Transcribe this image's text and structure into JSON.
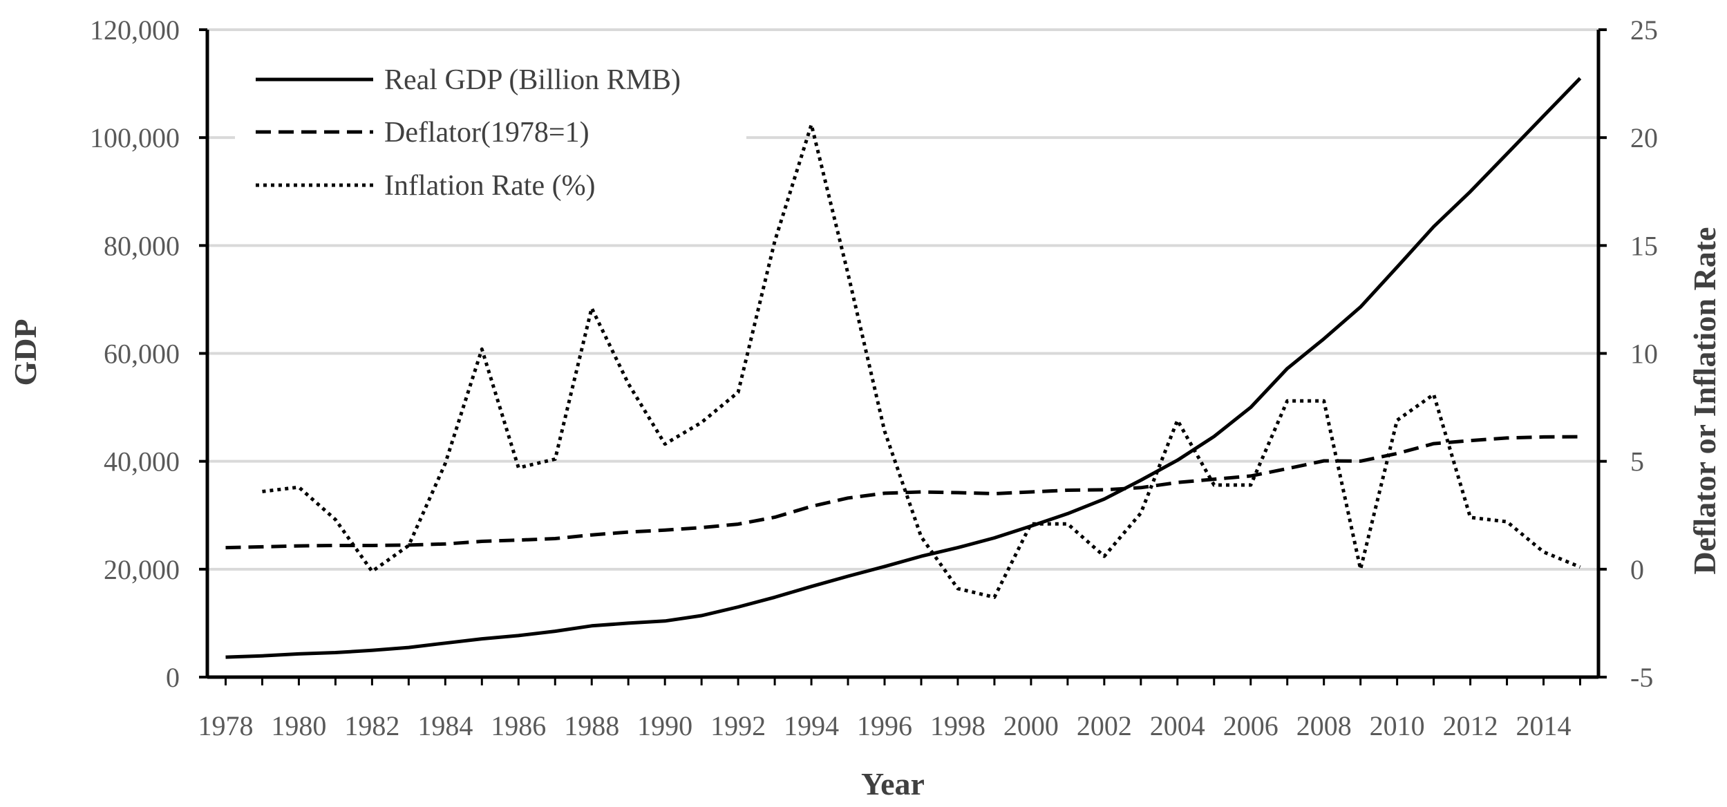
{
  "chart_data": {
    "type": "line",
    "title": "",
    "xlabel": "Year",
    "ylabel": "GDP",
    "y2label": "Deflator or Inflation Rate",
    "xlim": [
      1977.5,
      2015.5
    ],
    "ylim": [
      0,
      120000
    ],
    "y2lim": [
      -5,
      25
    ],
    "x_ticks": [
      1978,
      1980,
      1982,
      1984,
      1986,
      1988,
      1990,
      1992,
      1994,
      1996,
      1998,
      2000,
      2002,
      2004,
      2006,
      2008,
      2010,
      2012,
      2014
    ],
    "x_tick_labels": [
      "1978",
      "1980",
      "1982",
      "1984",
      "1986",
      "1988",
      "1990",
      "1992",
      "1994",
      "1996",
      "1998",
      "2000",
      "2002",
      "2004",
      "2006",
      "2008",
      "2010",
      "2012",
      "2014"
    ],
    "y_ticks": [
      0,
      20000,
      40000,
      60000,
      80000,
      100000,
      120000
    ],
    "y_tick_labels": [
      "0",
      "20,000",
      "40,000",
      "60,000",
      "80,000",
      "100,000",
      "120,000"
    ],
    "y2_ticks": [
      -5,
      0,
      5,
      10,
      15,
      20,
      25
    ],
    "y2_tick_labels": [
      "-5",
      "0",
      "5",
      "10",
      "15",
      "20",
      "25"
    ],
    "grid": "horizontal",
    "legend_position": "top-left",
    "series": [
      {
        "name": "Real GDP (Billion RMB)",
        "axis": "left",
        "style": "solid",
        "x": [
          1978,
          1979,
          1980,
          1981,
          1982,
          1983,
          1984,
          1985,
          1986,
          1987,
          1988,
          1989,
          1990,
          1991,
          1992,
          1993,
          1994,
          1995,
          1996,
          1997,
          1998,
          1999,
          2000,
          2001,
          2002,
          2003,
          2004,
          2005,
          2006,
          2007,
          2008,
          2009,
          2010,
          2011,
          2012,
          2013,
          2014,
          2015
        ],
        "values": [
          3700,
          3950,
          4300,
          4550,
          4950,
          5500,
          6300,
          7100,
          7700,
          8500,
          9500,
          10000,
          10400,
          11400,
          13000,
          14800,
          16800,
          18700,
          20500,
          22400,
          24000,
          25800,
          28000,
          30300,
          33000,
          36500,
          40200,
          44600,
          50000,
          57200,
          62700,
          68600,
          76000,
          83500,
          90000,
          97000,
          104000,
          111000
        ]
      },
      {
        "name": "Deflator(1978=1)",
        "axis": "right",
        "style": "dashed",
        "x": [
          1978,
          1979,
          1980,
          1981,
          1982,
          1983,
          1984,
          1985,
          1986,
          1987,
          1988,
          1989,
          1990,
          1991,
          1992,
          1993,
          1994,
          1995,
          1996,
          1997,
          1998,
          1999,
          2000,
          2001,
          2002,
          2003,
          2004,
          2005,
          2006,
          2007,
          2008,
          2009,
          2010,
          2011,
          2012,
          2013,
          2014,
          2015
        ],
        "values": [
          1.0,
          1.04,
          1.08,
          1.1,
          1.1,
          1.12,
          1.17,
          1.29,
          1.35,
          1.42,
          1.59,
          1.72,
          1.81,
          1.93,
          2.09,
          2.41,
          2.91,
          3.3,
          3.52,
          3.58,
          3.55,
          3.5,
          3.58,
          3.66,
          3.68,
          3.78,
          4.02,
          4.17,
          4.32,
          4.66,
          5.02,
          5.01,
          5.36,
          5.82,
          5.96,
          6.08,
          6.13,
          6.14
        ]
      },
      {
        "name": "Inflation Rate (%)",
        "axis": "right",
        "style": "dotted",
        "x": [
          1979,
          1980,
          1981,
          1982,
          1983,
          1984,
          1985,
          1986,
          1987,
          1988,
          1989,
          1990,
          1991,
          1992,
          1993,
          1994,
          1995,
          1996,
          1997,
          1998,
          1999,
          2000,
          2001,
          2002,
          2003,
          2004,
          2005,
          2006,
          2007,
          2008,
          2009,
          2010,
          2011,
          2012,
          2013,
          2014,
          2015
        ],
        "values": [
          3.6,
          3.8,
          2.3,
          -0.1,
          1.1,
          4.9,
          10.2,
          4.7,
          5.1,
          12.1,
          8.6,
          5.8,
          6.8,
          8.2,
          15.2,
          20.6,
          13.7,
          6.4,
          1.5,
          -0.9,
          -1.3,
          2.1,
          2.1,
          0.6,
          2.6,
          6.9,
          3.9,
          3.9,
          7.8,
          7.8,
          0,
          6.9,
          8.1,
          2.4,
          2.2,
          0.8,
          0.1
        ]
      }
    ]
  }
}
